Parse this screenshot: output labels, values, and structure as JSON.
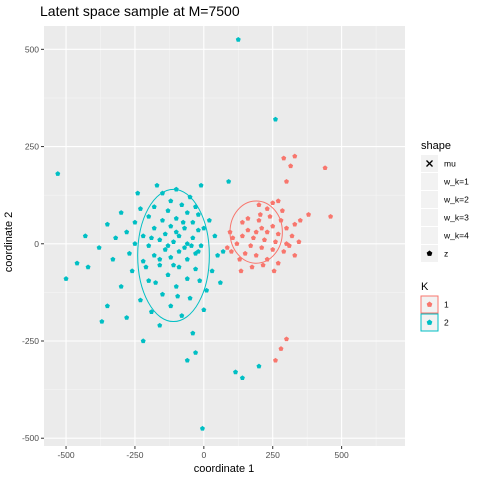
{
  "chart_data": {
    "type": "scatter",
    "title": "Latent space sample at M=7500",
    "xlabel": "coordinate 1",
    "ylabel": "coordinate 2",
    "xlim": [
      -580,
      730
    ],
    "ylim": [
      -520,
      560
    ],
    "x_ticks": [
      -500,
      -250,
      0,
      250,
      500
    ],
    "y_ticks": [
      -500,
      -250,
      0,
      250,
      500
    ],
    "grid": true,
    "legend_position": "right",
    "legend_shape": {
      "title": "shape",
      "items": [
        {
          "label": "mu",
          "symbol": "cross"
        },
        {
          "label": "w_k=1",
          "symbol": "none"
        },
        {
          "label": "w_k=2",
          "symbol": "none"
        },
        {
          "label": "w_k=3",
          "symbol": "none"
        },
        {
          "label": "w_k=4",
          "symbol": "none"
        },
        {
          "label": "z",
          "symbol": "pentagon"
        }
      ]
    },
    "legend_color": {
      "title": "K",
      "items": [
        {
          "label": "1",
          "color": "#F8766D"
        },
        {
          "label": "2",
          "color": "#00BFC4"
        }
      ]
    },
    "series": [
      {
        "name": "1",
        "color": "#F8766D",
        "ellipse": {
          "cx": 190,
          "cy": 30,
          "rx": 95,
          "ry": 80
        },
        "points": [
          [
            330,
            225
          ],
          [
            290,
            220
          ],
          [
            315,
            200
          ],
          [
            440,
            195
          ],
          [
            300,
            160
          ],
          [
            270,
            110
          ],
          [
            250,
            105
          ],
          [
            200,
            100
          ],
          [
            230,
            90
          ],
          [
            380,
            75
          ],
          [
            460,
            70
          ],
          [
            350,
            60
          ],
          [
            280,
            60
          ],
          [
            330,
            50
          ],
          [
            250,
            45
          ],
          [
            300,
            40
          ],
          [
            210,
            40
          ],
          [
            160,
            35
          ],
          [
            190,
            30
          ],
          [
            230,
            30
          ],
          [
            270,
            25
          ],
          [
            320,
            20
          ],
          [
            140,
            20
          ],
          [
            180,
            15
          ],
          [
            220,
            10
          ],
          [
            260,
            5
          ],
          [
            300,
            0
          ],
          [
            120,
            0
          ],
          [
            170,
            -5
          ],
          [
            210,
            -10
          ],
          [
            250,
            -15
          ],
          [
            290,
            -20
          ],
          [
            150,
            -25
          ],
          [
            190,
            -30
          ],
          [
            230,
            -40
          ],
          [
            270,
            -50
          ],
          [
            130,
            -40
          ],
          [
            100,
            -20
          ],
          [
            140,
            55
          ],
          [
            330,
            -30
          ],
          [
            95,
            30
          ],
          [
            240,
            70
          ],
          [
            200,
            60
          ],
          [
            160,
            65
          ],
          [
            285,
            85
          ],
          [
            310,
            -5
          ],
          [
            345,
            5
          ],
          [
            105,
            15
          ],
          [
            85,
            -10
          ],
          [
            215,
            -55
          ],
          [
            255,
            -70
          ],
          [
            175,
            -60
          ],
          [
            135,
            -70
          ],
          [
            205,
            75
          ],
          [
            300,
            -245
          ],
          [
            280,
            -270
          ],
          [
            260,
            -300
          ]
        ]
      },
      {
        "name": "2",
        "color": "#00BFC4",
        "ellipse": {
          "cx": -110,
          "cy": -30,
          "rx": 130,
          "ry": 170
        },
        "points": [
          [
            125,
            525
          ],
          [
            260,
            320
          ],
          [
            -530,
            180
          ],
          [
            90,
            160
          ],
          [
            -170,
            150
          ],
          [
            -100,
            140
          ],
          [
            -150,
            130
          ],
          [
            -50,
            120
          ],
          [
            -120,
            110
          ],
          [
            -80,
            100
          ],
          [
            -30,
            95
          ],
          [
            -180,
            95
          ],
          [
            -230,
            90
          ],
          [
            -130,
            85
          ],
          [
            -60,
            80
          ],
          [
            -300,
            80
          ],
          [
            -20,
            75
          ],
          [
            -200,
            70
          ],
          [
            -100,
            65
          ],
          [
            -150,
            60
          ],
          [
            -40,
            55
          ],
          [
            -250,
            55
          ],
          [
            -350,
            50
          ],
          [
            -120,
            45
          ],
          [
            -70,
            40
          ],
          [
            -180,
            40
          ],
          [
            -20,
            35
          ],
          [
            -280,
            30
          ],
          [
            -140,
            25
          ],
          [
            -90,
            20
          ],
          [
            -220,
            20
          ],
          [
            -40,
            15
          ],
          [
            -320,
            15
          ],
          [
            -160,
            10
          ],
          [
            -110,
            5
          ],
          [
            -60,
            0
          ],
          [
            -250,
            0
          ],
          [
            -10,
            -5
          ],
          [
            -200,
            -5
          ],
          [
            -380,
            -10
          ],
          [
            -140,
            -15
          ],
          [
            -90,
            -20
          ],
          [
            -30,
            -25
          ],
          [
            -270,
            -25
          ],
          [
            -180,
            -30
          ],
          [
            -120,
            -35
          ],
          [
            -60,
            -40
          ],
          [
            -330,
            -40
          ],
          [
            -220,
            -45
          ],
          [
            -160,
            -55
          ],
          [
            -90,
            -60
          ],
          [
            -30,
            -65
          ],
          [
            -260,
            -70
          ],
          [
            -420,
            -60
          ],
          [
            -500,
            -90
          ],
          [
            -130,
            -80
          ],
          [
            -60,
            -90
          ],
          [
            -200,
            -95
          ],
          [
            -300,
            -110
          ],
          [
            -100,
            -110
          ],
          [
            -150,
            -130
          ],
          [
            -50,
            -140
          ],
          [
            -230,
            -145
          ],
          [
            -350,
            -160
          ],
          [
            -120,
            -160
          ],
          [
            -190,
            -175
          ],
          [
            -80,
            -185
          ],
          [
            -280,
            -190
          ],
          [
            -160,
            -210
          ],
          [
            -40,
            -230
          ],
          [
            -220,
            -250
          ],
          [
            -30,
            -280
          ],
          [
            -370,
            -200
          ],
          [
            -60,
            -300
          ],
          [
            10,
            -120
          ],
          [
            30,
            -70
          ],
          [
            50,
            -30
          ],
          [
            40,
            20
          ],
          [
            20,
            60
          ],
          [
            60,
            -100
          ],
          [
            -430,
            20
          ],
          [
            -460,
            -50
          ],
          [
            0,
            -170
          ],
          [
            -240,
            130
          ],
          [
            -10,
            150
          ],
          [
            70,
            -20
          ],
          [
            140,
            -345
          ],
          [
            -5,
            -475
          ],
          [
            200,
            -315
          ],
          [
            115,
            -330
          ],
          [
            -20,
            -20
          ],
          [
            -70,
            -10
          ],
          [
            -130,
            -5
          ],
          [
            -190,
            15
          ],
          [
            -100,
            30
          ],
          [
            -45,
            -5
          ],
          [
            -160,
            -40
          ],
          [
            -75,
            55
          ],
          [
            -210,
            -60
          ],
          [
            0,
            40
          ],
          [
            -110,
            -55
          ],
          [
            -15,
            -95
          ],
          [
            -95,
            -135
          ],
          [
            -175,
            -100
          ]
        ]
      }
    ]
  }
}
